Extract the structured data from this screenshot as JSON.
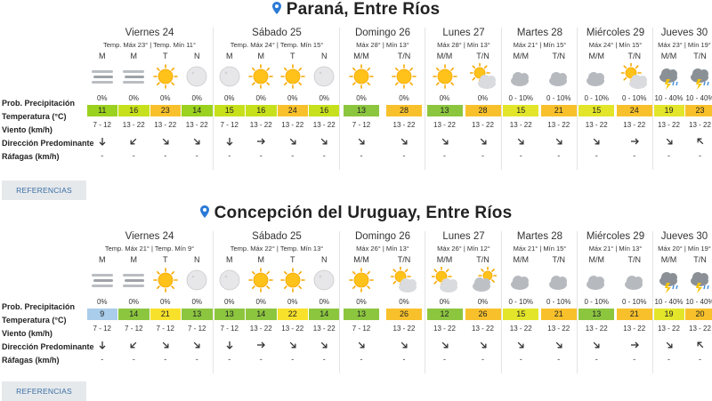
{
  "sections": [
    {
      "city": "Paraná, Entre Ríos",
      "days": [
        {
          "name": "Viernes 24",
          "temps": "Temp. Máx 23° | Temp. Mín 11°",
          "periods": [
            "M",
            "M",
            "T",
            "N"
          ],
          "icons": [
            "fog-icon",
            "fog-icon",
            "sun-icon",
            "moon-icon"
          ],
          "prob": [
            "0%",
            "0%",
            "0%",
            "0%"
          ],
          "temp": [
            "11",
            "16",
            "23",
            "14"
          ],
          "tcolor": [
            "#9bd11f",
            "#c7e01c",
            "#f8c12b",
            "#9bd11f"
          ],
          "wind": [
            "7 - 12",
            "13 - 22",
            "13 - 22",
            "13 - 22"
          ],
          "dir": [
            270,
            315,
            225,
            225
          ],
          "gust": [
            "-",
            "-",
            "-",
            "-"
          ]
        },
        {
          "name": "Sábado 25",
          "temps": "Temp. Máx 24° | Temp. Mín 15°",
          "periods": [
            "M",
            "M",
            "T",
            "N"
          ],
          "icons": [
            "moon-icon",
            "sun-icon",
            "sun-icon",
            "moon-icon"
          ],
          "prob": [
            "0%",
            "0%",
            "0%",
            "0%"
          ],
          "temp": [
            "15",
            "16",
            "24",
            "16"
          ],
          "tcolor": [
            "#c7e01c",
            "#c7e01c",
            "#f8c12b",
            "#c7e01c"
          ],
          "wind": [
            "7 - 12",
            "13 - 22",
            "13 - 22",
            "13 - 22"
          ],
          "dir": [
            270,
            180,
            225,
            225
          ],
          "gust": [
            "-",
            "-",
            "-",
            "-"
          ]
        },
        {
          "name": "Domingo 26",
          "temps": "Máx 28° | Mín 13°",
          "periods": [
            "M/M",
            "T/N"
          ],
          "icons": [
            "sun-icon",
            "sun-icon"
          ],
          "prob": [
            "0%",
            "0%"
          ],
          "temp": [
            "13",
            "28"
          ],
          "tcolor": [
            "#8cc63f",
            "#f8c12b"
          ],
          "wind": [
            "7 - 12",
            "13 - 22"
          ],
          "dir": [
            225,
            225
          ],
          "gust": [
            "-",
            "-"
          ]
        },
        {
          "name": "Lunes 27",
          "temps": "Máx 28° | Mín 13°",
          "periods": [
            "M/M",
            "T/N"
          ],
          "icons": [
            "sun-icon",
            "partly-cloudy-icon"
          ],
          "prob": [
            "0%",
            "0%"
          ],
          "temp": [
            "13",
            "28"
          ],
          "tcolor": [
            "#8cc63f",
            "#f8c12b"
          ],
          "wind": [
            "13 - 22",
            "13 - 22"
          ],
          "dir": [
            225,
            225
          ],
          "gust": [
            "-",
            "-"
          ]
        },
        {
          "name": "Martes 28",
          "temps": "Máx 21° | Mín 15°",
          "periods": [
            "M/M",
            "T/N"
          ],
          "icons": [
            "cloud-icon",
            "cloud-icon"
          ],
          "prob": [
            "0 - 10%",
            "0 - 10%"
          ],
          "temp": [
            "15",
            "21"
          ],
          "tcolor": [
            "#e3e52a",
            "#f8c12b"
          ],
          "wind": [
            "13 - 22",
            "13 - 22"
          ],
          "dir": [
            225,
            225
          ],
          "gust": [
            "-",
            "-"
          ]
        },
        {
          "name": "Miércoles 29",
          "temps": "Máx 24° | Mín 15°",
          "periods": [
            "M/M",
            "T/N"
          ],
          "icons": [
            "cloud-icon",
            "partly-cloudy-icon"
          ],
          "prob": [
            "0 - 10%",
            "0 - 10%"
          ],
          "temp": [
            "15",
            "24"
          ],
          "tcolor": [
            "#e3e52a",
            "#f8c12b"
          ],
          "wind": [
            "13 - 22",
            "13 - 22"
          ],
          "dir": [
            225,
            180
          ],
          "gust": [
            "-",
            "-"
          ]
        },
        {
          "name": "Jueves 30",
          "temps": "Máx 23° | Mín 19°",
          "periods": [
            "M/M",
            "T/N"
          ],
          "icons": [
            "storm-icon",
            "storm-icon"
          ],
          "prob": [
            "10 - 40%",
            "10 - 40%"
          ],
          "temp": [
            "19",
            "23"
          ],
          "tcolor": [
            "#e3e52a",
            "#f8c12b"
          ],
          "wind": [
            "13 - 22",
            "13 - 22"
          ],
          "dir": [
            225,
            45
          ],
          "gust": [
            "-",
            "-"
          ]
        }
      ]
    },
    {
      "city": "Concepción del Uruguay, Entre Ríos",
      "days": [
        {
          "name": "Viernes 24",
          "temps": "Temp. Máx 21° | Temp. Mín 9°",
          "periods": [
            "M",
            "M",
            "T",
            "N"
          ],
          "icons": [
            "fog-icon",
            "fog-icon",
            "sun-icon",
            "moon-icon"
          ],
          "prob": [
            "0%",
            "0%",
            "0%",
            "0%"
          ],
          "temp": [
            "9",
            "14",
            "21",
            "13"
          ],
          "tcolor": [
            "#a9cdea",
            "#8cc63f",
            "#f8e12b",
            "#8cc63f"
          ],
          "wind": [
            "7 - 12",
            "7 - 12",
            "7 - 12",
            "7 - 12"
          ],
          "dir": [
            270,
            315,
            225,
            225
          ],
          "gust": [
            "-",
            "-",
            "-",
            "-"
          ]
        },
        {
          "name": "Sábado 25",
          "temps": "Temp. Máx 22° | Temp. Mín 13°",
          "periods": [
            "M",
            "M",
            "T",
            "N"
          ],
          "icons": [
            "moon-icon",
            "sun-icon",
            "sun-icon",
            "moon-icon"
          ],
          "prob": [
            "0%",
            "0%",
            "0%",
            "0%"
          ],
          "temp": [
            "13",
            "14",
            "22",
            "14"
          ],
          "tcolor": [
            "#8cc63f",
            "#8cc63f",
            "#f8e12b",
            "#8cc63f"
          ],
          "wind": [
            "7 - 12",
            "13 - 22",
            "13 - 22",
            "13 - 22"
          ],
          "dir": [
            270,
            180,
            225,
            225
          ],
          "gust": [
            "-",
            "-",
            "-",
            "-"
          ]
        },
        {
          "name": "Domingo 26",
          "temps": "Máx 26° | Mín 13°",
          "periods": [
            "M/M",
            "T/N"
          ],
          "icons": [
            "sun-icon",
            "partly-cloudy-icon"
          ],
          "prob": [
            "0%",
            "0%"
          ],
          "temp": [
            "13",
            "26"
          ],
          "tcolor": [
            "#8cc63f",
            "#f8c12b"
          ],
          "wind": [
            "7 - 12",
            "13 - 22"
          ],
          "dir": [
            225,
            225
          ],
          "gust": [
            "-",
            "-"
          ]
        },
        {
          "name": "Lunes 27",
          "temps": "Máx 26° | Mín 12°",
          "periods": [
            "M/M",
            "T/N"
          ],
          "icons": [
            "partly-cloudy-icon",
            "cloud-sun-icon"
          ],
          "prob": [
            "0%",
            "0%"
          ],
          "temp": [
            "12",
            "26"
          ],
          "tcolor": [
            "#8cc63f",
            "#f8c12b"
          ],
          "wind": [
            "13 - 22",
            "13 - 22"
          ],
          "dir": [
            225,
            225
          ],
          "gust": [
            "-",
            "-"
          ]
        },
        {
          "name": "Martes 28",
          "temps": "Máx 21° | Mín 15°",
          "periods": [
            "M/M",
            "T/N"
          ],
          "icons": [
            "cloud-icon",
            "cloud-icon"
          ],
          "prob": [
            "0 - 10%",
            "0 - 10%"
          ],
          "temp": [
            "15",
            "21"
          ],
          "tcolor": [
            "#e3e52a",
            "#f8c12b"
          ],
          "wind": [
            "13 - 22",
            "13 - 22"
          ],
          "dir": [
            225,
            225
          ],
          "gust": [
            "-",
            "-"
          ]
        },
        {
          "name": "Miércoles 29",
          "temps": "Máx 21° | Mín 13°",
          "periods": [
            "M/M",
            "T/N"
          ],
          "icons": [
            "cloud-icon",
            "cloud-icon"
          ],
          "prob": [
            "0 - 10%",
            "0 - 10%"
          ],
          "temp": [
            "13",
            "21"
          ],
          "tcolor": [
            "#8cc63f",
            "#f8c12b"
          ],
          "wind": [
            "13 - 22",
            "13 - 22"
          ],
          "dir": [
            225,
            180
          ],
          "gust": [
            "-",
            "-"
          ]
        },
        {
          "name": "Jueves 30",
          "temps": "Máx 20° | Mín 19°",
          "periods": [
            "M/M",
            "T/N"
          ],
          "icons": [
            "storm-icon",
            "storm-icon"
          ],
          "prob": [
            "10 - 40%",
            "10 - 40%"
          ],
          "temp": [
            "19",
            "20"
          ],
          "tcolor": [
            "#e3e52a",
            "#f8c12b"
          ],
          "wind": [
            "13 - 22",
            "13 - 22"
          ],
          "dir": [
            225,
            45
          ],
          "gust": [
            "-",
            "-"
          ]
        }
      ]
    }
  ],
  "labels": {
    "prob": "Prob. Precipitación",
    "temp": "Temperatura (°C)",
    "wind": "Viento (km/h)",
    "dir": "Dirección Predominante",
    "gust": "Ráfagas (km/h)"
  },
  "refs_label": "REFERENCIAS",
  "colors": {
    "pin": "#2b7bd6",
    "link": "#3a6ea5",
    "divider": "#e4e4e4"
  }
}
